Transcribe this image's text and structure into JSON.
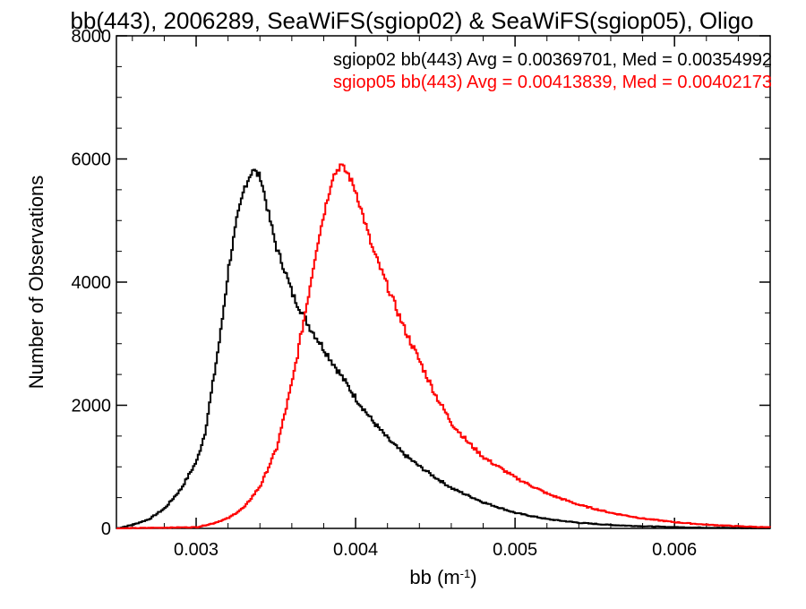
{
  "chart_data": {
    "type": "line",
    "title": "bb(443), 2006289, SeaWiFS(sgiop02) & SeaWiFS(sgiop05), Oligo",
    "xlabel": "bb (m",
    "xlabel_sup": "-1",
    "xlabel_tail": ")",
    "ylabel": "Number of Observations",
    "xlim": [
      0.0025,
      0.0066
    ],
    "ylim": [
      0,
      8000
    ],
    "xticks": [
      0.003,
      0.004,
      0.005,
      0.006
    ],
    "xtick_labels": [
      "0.003",
      "0.004",
      "0.005",
      "0.006"
    ],
    "yticks": [
      0,
      2000,
      4000,
      6000,
      8000
    ],
    "ytick_labels": [
      "0",
      "2000",
      "4000",
      "6000",
      "8000"
    ],
    "grid": false,
    "legend_position": "top-right",
    "annotations": [
      {
        "text": "sgiop02 bb(443) Avg = 0.00369701, Med = 0.00354992",
        "color": "#000000"
      },
      {
        "text": "sgiop05 bb(443) Avg = 0.00413839, Med = 0.00402173",
        "color": "#ff0000"
      }
    ],
    "series": [
      {
        "color": "#000000",
        "step": true,
        "x": [
          0.0025,
          0.0026,
          0.0027,
          0.0028,
          0.0029,
          0.003,
          0.00305,
          0.0031,
          0.00315,
          0.0032,
          0.00325,
          0.0033,
          0.00335,
          0.0034,
          0.00345,
          0.0035,
          0.00355,
          0.0036,
          0.00365,
          0.0037,
          0.0038,
          0.0039,
          0.004,
          0.0041,
          0.0042,
          0.0043,
          0.0044,
          0.0045,
          0.0046,
          0.0048,
          0.005,
          0.0052,
          0.0054,
          0.0056,
          0.0058,
          0.006,
          0.0062,
          0.0066
        ],
        "y": [
          0,
          60,
          150,
          330,
          640,
          1100,
          1550,
          2350,
          3200,
          4250,
          5000,
          5550,
          5830,
          5700,
          5100,
          4550,
          4200,
          3800,
          3550,
          3300,
          2900,
          2500,
          2100,
          1750,
          1450,
          1200,
          1000,
          820,
          650,
          420,
          250,
          150,
          90,
          55,
          35,
          20,
          12,
          0
        ]
      },
      {
        "color": "#ff0000",
        "step": true,
        "x": [
          0.0025,
          0.003,
          0.0031,
          0.0032,
          0.0033,
          0.0034,
          0.00345,
          0.0035,
          0.00355,
          0.0036,
          0.00365,
          0.0037,
          0.00375,
          0.0038,
          0.00385,
          0.0039,
          0.00395,
          0.004,
          0.00405,
          0.0041,
          0.0042,
          0.0043,
          0.0044,
          0.0045,
          0.0046,
          0.0047,
          0.0048,
          0.005,
          0.0052,
          0.0054,
          0.0056,
          0.0058,
          0.006,
          0.0062,
          0.0064,
          0.0066
        ],
        "y": [
          0,
          20,
          80,
          170,
          350,
          700,
          1000,
          1300,
          1850,
          2400,
          3100,
          3800,
          4550,
          5150,
          5700,
          5900,
          5750,
          5450,
          5000,
          4550,
          3900,
          3250,
          2700,
          2150,
          1700,
          1400,
          1150,
          820,
          560,
          380,
          250,
          160,
          100,
          60,
          35,
          15
        ]
      }
    ]
  }
}
